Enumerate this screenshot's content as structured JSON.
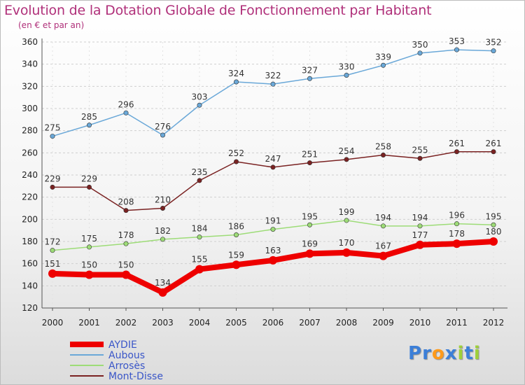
{
  "chart_data": {
    "type": "line",
    "title": "Evolution de la Dotation Globale de Fonctionnement par Habitant",
    "subtitle": "(en € et par an)",
    "x": [
      "2000",
      "2001",
      "2002",
      "2003",
      "2004",
      "2005",
      "2006",
      "2007",
      "2008",
      "2009",
      "2010",
      "2011",
      "2012"
    ],
    "ylim": [
      120,
      360
    ],
    "yticks": [
      120,
      140,
      160,
      180,
      200,
      220,
      240,
      260,
      280,
      300,
      320,
      340,
      360
    ],
    "grid": "horizontal dashed",
    "legend_position": "bottom-left",
    "series": [
      {
        "name": "AYDIE",
        "color": "#ee0000",
        "values": [
          151,
          150,
          150,
          134,
          155,
          159,
          163,
          169,
          170,
          167,
          177,
          178,
          180
        ],
        "thick": true
      },
      {
        "name": "Aubous",
        "color": "#6aa8d8",
        "values": [
          275,
          285,
          296,
          276,
          303,
          324,
          322,
          327,
          330,
          339,
          350,
          353,
          352
        ],
        "thick": false
      },
      {
        "name": "Arrosès",
        "color": "#9ddc77",
        "values": [
          172,
          175,
          178,
          182,
          184,
          186,
          191,
          195,
          199,
          194,
          194,
          196,
          195
        ],
        "thick": false
      },
      {
        "name": "Mont-Disse",
        "color": "#7a2222",
        "values": [
          229,
          229,
          208,
          210,
          235,
          252,
          247,
          251,
          254,
          258,
          255,
          261,
          261
        ],
        "thick": false
      }
    ]
  },
  "logo": {
    "letters": [
      {
        "char": "P",
        "color": "#3c7fd8"
      },
      {
        "char": "r",
        "color": "#3c7fd8"
      },
      {
        "char": "o",
        "color": "#ff9a1a"
      },
      {
        "char": "x",
        "color": "#3c7fd8"
      },
      {
        "char": "i",
        "color": "#9ed03a"
      },
      {
        "char": "t",
        "color": "#3c7fd8"
      },
      {
        "char": "i",
        "color": "#9ed03a"
      }
    ]
  }
}
